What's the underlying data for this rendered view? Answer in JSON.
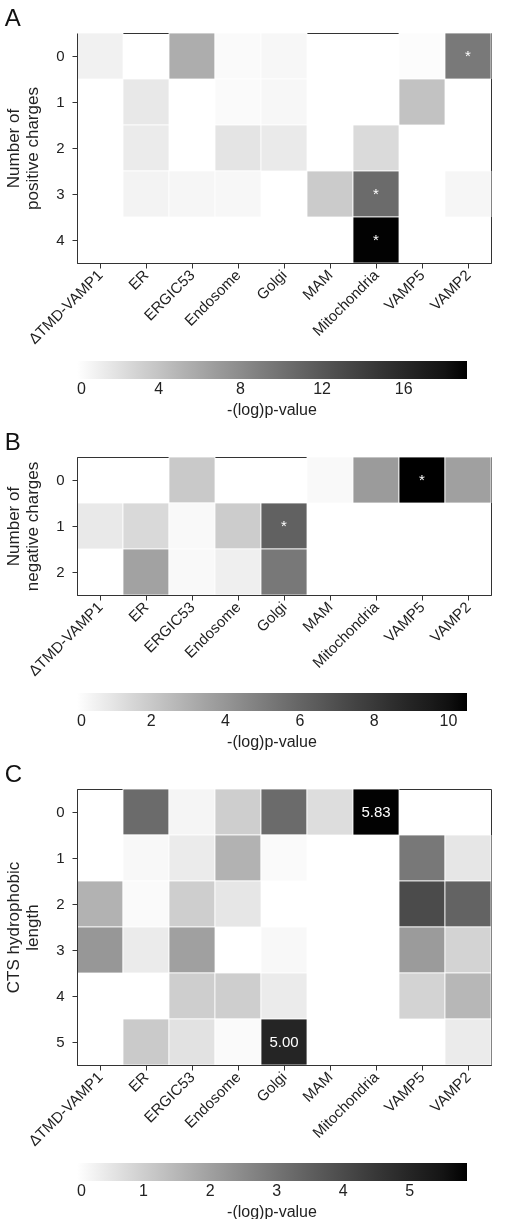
{
  "chart_data": [
    {
      "type": "heatmap",
      "title": "A",
      "ylabel": "Number of positive charges",
      "clabel": "-(log)p-value",
      "categories": [
        "ΔTMD-VAMP1",
        "ER",
        "ERGIC53",
        "Endosome",
        "Golgi",
        "MAM",
        "Mitochondria",
        "VAMP5",
        "VAMP2"
      ],
      "y_categories": [
        "0",
        "1",
        "2",
        "3",
        "4"
      ],
      "cells": [
        [
          0.9,
          null,
          5.6,
          0.3,
          0.5,
          null,
          null,
          0.2,
          9.4
        ],
        [
          null,
          1.5,
          null,
          0.3,
          0.5,
          null,
          null,
          4.1,
          null
        ],
        [
          null,
          1.3,
          null,
          1.8,
          1.4,
          null,
          2.5,
          null,
          null
        ],
        [
          null,
          0.8,
          0.6,
          0.5,
          null,
          3.5,
          10.5,
          null,
          0.6
        ],
        [
          null,
          null,
          null,
          null,
          null,
          null,
          19,
          null,
          null
        ]
      ],
      "cell_labels": [
        [
          null,
          null,
          null,
          null,
          null,
          null,
          null,
          null,
          "*"
        ],
        [
          null,
          null,
          null,
          null,
          null,
          null,
          null,
          null,
          null
        ],
        [
          null,
          null,
          null,
          null,
          null,
          null,
          null,
          null,
          null
        ],
        [
          null,
          null,
          null,
          null,
          null,
          null,
          "*",
          null,
          null
        ],
        [
          null,
          null,
          null,
          null,
          null,
          null,
          "*",
          null,
          null
        ]
      ],
      "clim": [
        0,
        19.1
      ],
      "cticks": [
        0,
        4,
        8,
        12,
        16
      ]
    },
    {
      "type": "heatmap",
      "title": "B",
      "ylabel": "Number of negative charges",
      "clabel": "-(log)p-value",
      "categories": [
        "ΔTMD-VAMP1",
        "ER",
        "ERGIC53",
        "Endosome",
        "Golgi",
        "MAM",
        "Mitochondria",
        "VAMP5",
        "VAMP2"
      ],
      "y_categories": [
        "0",
        "1",
        "2"
      ],
      "cells": [
        [
          null,
          null,
          2.0,
          null,
          null,
          0.2,
          3.8,
          10.5,
          3.6
        ],
        [
          0.8,
          1.4,
          0.2,
          1.9,
          6.2,
          null,
          null,
          null,
          null
        ],
        [
          null,
          3.5,
          0.2,
          0.6,
          5.2,
          null,
          null,
          null,
          null
        ]
      ],
      "cell_labels": [
        [
          null,
          null,
          null,
          null,
          null,
          null,
          null,
          "*",
          null
        ],
        [
          null,
          null,
          null,
          null,
          "*",
          null,
          null,
          null,
          null
        ],
        [
          null,
          null,
          null,
          null,
          null,
          null,
          null,
          null,
          null
        ]
      ],
      "clim": [
        0,
        10.5
      ],
      "cticks": [
        0,
        2,
        4,
        6,
        8,
        10
      ]
    },
    {
      "type": "heatmap",
      "title": "C",
      "ylabel": "CTS hydrophobic length",
      "clabel": "-(log)p-value",
      "categories": [
        "ΔTMD-VAMP1",
        "ER",
        "ERGIC53",
        "Endosome",
        "Golgi",
        "MAM",
        "Mitochondria",
        "VAMP5",
        "VAMP2"
      ],
      "y_categories": [
        "0",
        "1",
        "2",
        "3",
        "4",
        "5"
      ],
      "cells": [
        [
          null,
          3.2,
          0.2,
          1.0,
          3.2,
          0.7,
          5.83,
          null,
          null
        ],
        [
          null,
          0.15,
          0.4,
          1.6,
          0.1,
          null,
          null,
          2.9,
          0.5
        ],
        [
          1.6,
          0.1,
          1.0,
          0.5,
          null,
          null,
          null,
          4.0,
          3.4
        ],
        [
          2.2,
          0.4,
          2.0,
          null,
          0.15,
          null,
          null,
          2.1,
          0.9
        ],
        [
          null,
          null,
          1.0,
          1.0,
          0.4,
          null,
          null,
          0.9,
          1.5
        ],
        [
          null,
          1.1,
          0.6,
          0.1,
          5.0,
          null,
          null,
          null,
          0.4
        ]
      ],
      "cell_labels": [
        [
          null,
          null,
          null,
          null,
          null,
          null,
          "5.83",
          null,
          null
        ],
        [
          null,
          null,
          null,
          null,
          null,
          null,
          null,
          null,
          null
        ],
        [
          null,
          null,
          null,
          null,
          null,
          null,
          null,
          null,
          null
        ],
        [
          null,
          null,
          null,
          null,
          null,
          null,
          null,
          null,
          null
        ],
        [
          null,
          null,
          null,
          null,
          null,
          null,
          null,
          null,
          null
        ],
        [
          null,
          null,
          null,
          null,
          "5.00",
          null,
          null,
          null,
          null
        ]
      ],
      "clim": [
        0,
        5.86
      ],
      "cticks": [
        0,
        1,
        2,
        3,
        4,
        5
      ]
    }
  ]
}
